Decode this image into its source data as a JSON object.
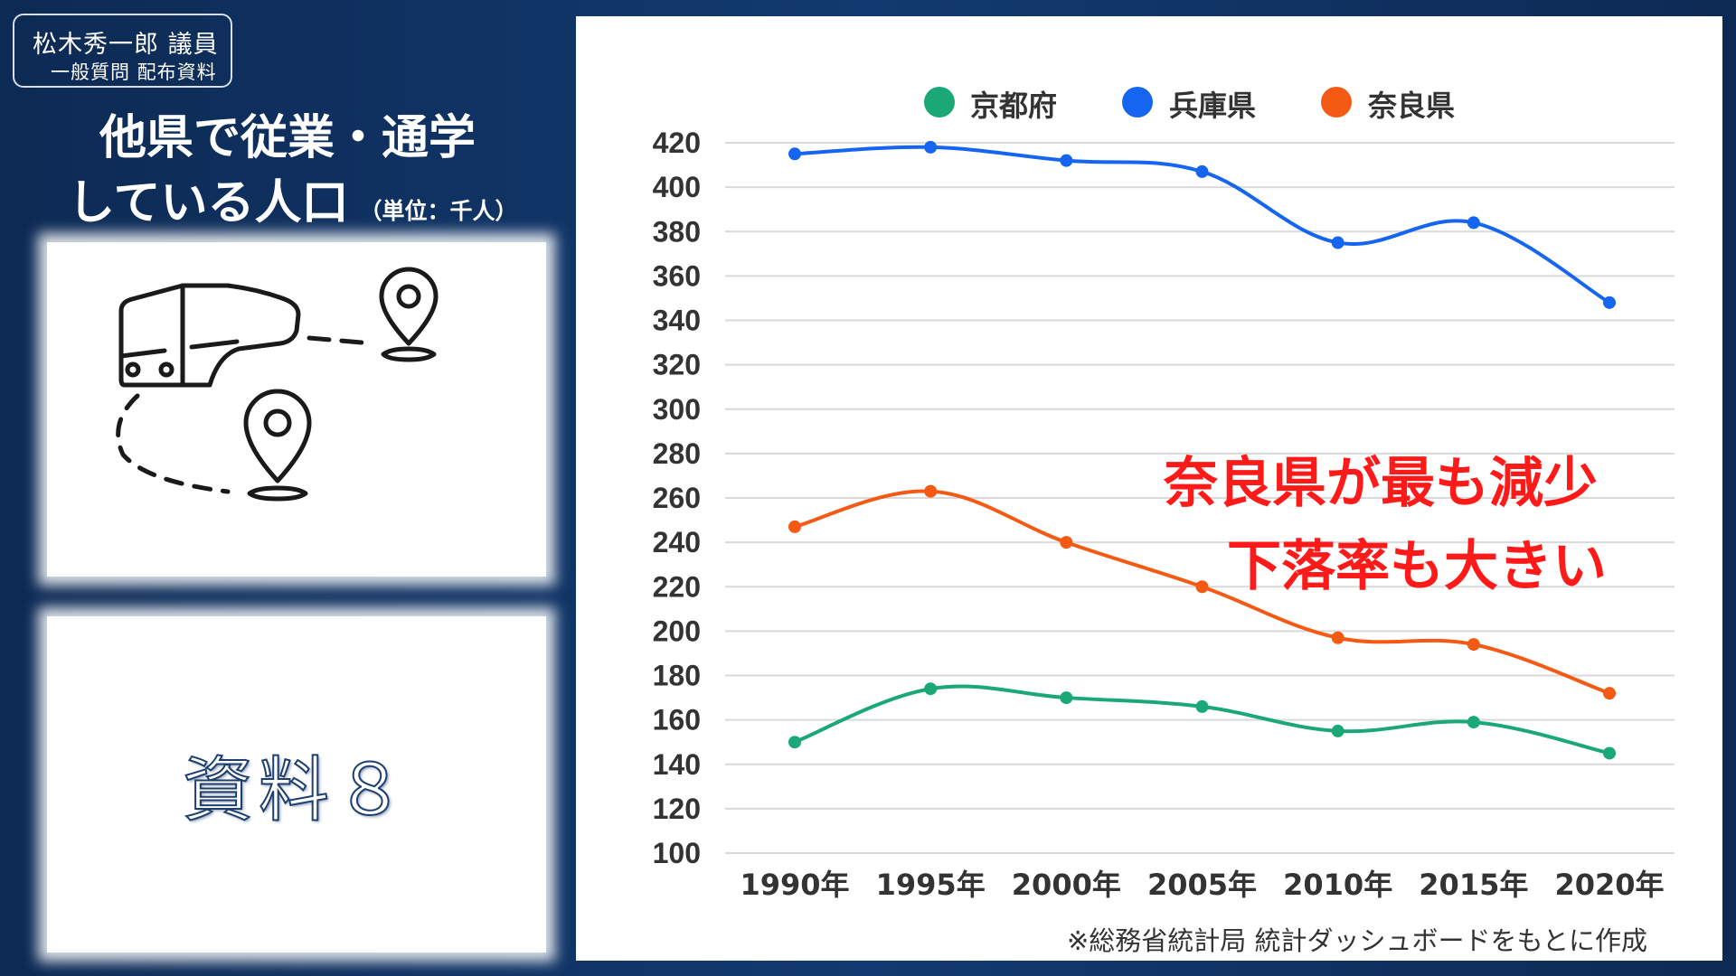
{
  "badge": {
    "line1": "松木秀一郎 議員",
    "line2": "一般質問 配布資料"
  },
  "title": {
    "line1": "他県で従業・通学",
    "line2": "している人口",
    "unit": "（単位：千人）"
  },
  "material_label": "資料８",
  "icons": {
    "illustration": "bus-route-icon"
  },
  "callout": {
    "line1": "奈良県が最も減少",
    "line2": "下落率も大きい",
    "color": "#ff1a1a"
  },
  "footnote": "※総務省統計局  統計ダッシュボードをもとに作成",
  "chart_data": {
    "type": "line",
    "categories": [
      "1990年",
      "1995年",
      "2000年",
      "2005年",
      "2010年",
      "2015年",
      "2020年"
    ],
    "series": [
      {
        "name": "京都府",
        "color": "#1aa876",
        "values": [
          150,
          174,
          170,
          166,
          155,
          159,
          145
        ]
      },
      {
        "name": "兵庫県",
        "color": "#1565f0",
        "values": [
          415,
          418,
          412,
          407,
          375,
          384,
          348
        ]
      },
      {
        "name": "奈良県",
        "color": "#f55a14",
        "values": [
          247,
          263,
          240,
          220,
          197,
          194,
          172
        ]
      }
    ],
    "ylim": [
      100,
      420
    ],
    "yticks": [
      420,
      400,
      380,
      360,
      340,
      320,
      300,
      280,
      260,
      240,
      220,
      200,
      180,
      160,
      140,
      120,
      100
    ],
    "grid": true,
    "legend": "top"
  }
}
